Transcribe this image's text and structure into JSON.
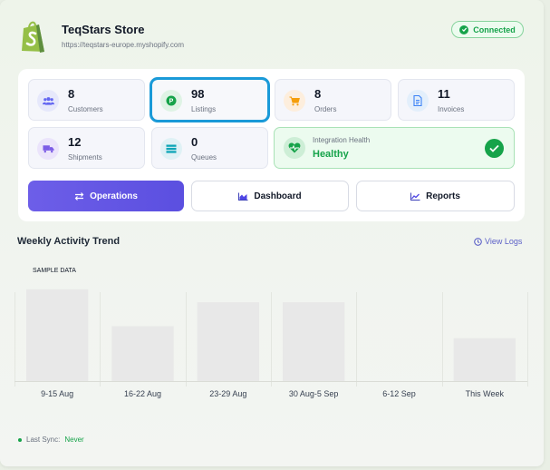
{
  "header": {
    "store_name": "TeqStars Store",
    "store_url": "https://teqstars-europe.myshopify.com",
    "status": "Connected"
  },
  "stats": [
    {
      "value": "8",
      "label": "Customers",
      "icon": "customers-icon"
    },
    {
      "value": "98",
      "label": "Listings",
      "icon": "listings-icon"
    },
    {
      "value": "8",
      "label": "Orders",
      "icon": "cart-icon"
    },
    {
      "value": "11",
      "label": "Invoices",
      "icon": "invoice-icon"
    },
    {
      "value": "12",
      "label": "Shipments",
      "icon": "truck-icon"
    },
    {
      "value": "0",
      "label": "Queues",
      "icon": "queue-icon"
    }
  ],
  "health": {
    "title": "Integration Health",
    "status": "Healthy"
  },
  "buttons": {
    "operations": "Operations",
    "dashboard": "Dashboard",
    "reports": "Reports"
  },
  "trend": {
    "title": "Weekly Activity Trend",
    "view_logs": "View Logs",
    "sample_label": "SAMPLE DATA"
  },
  "chart_data": {
    "type": "bar",
    "categories": [
      "9-15 Aug",
      "16-22 Aug",
      "23-29 Aug",
      "30 Aug-5 Sep",
      "6-12 Sep",
      "This Week"
    ],
    "values": [
      92,
      55,
      79,
      79,
      0,
      43
    ],
    "ylim": [
      0,
      100
    ],
    "grid": "vertical",
    "legend": "none"
  },
  "footer": {
    "last_sync_label": "Last Sync:",
    "last_sync_value": "Never"
  },
  "colors": {
    "accent": "#5b4fe0",
    "success": "#16a34a",
    "selection": "#1a9ad8",
    "bar": "#e8e8e8"
  }
}
